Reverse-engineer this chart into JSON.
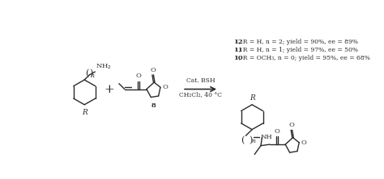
{
  "background_color": "#ffffff",
  "figure_width": 4.74,
  "figure_height": 2.22,
  "dpi": 100,
  "conditions_line1": "Cat. BSH",
  "conditions_line2": "CH₂Cl₂, 40 °C",
  "label_lines": [
    "10, R = OCH₃, n = 0; yield = 95%, ee = 68%",
    "11, R = H, n = 1; yield = 97%, ee = 50%",
    "12, R = H, n = 2; yield = 90%, ee = 89%"
  ],
  "line_color": "#2a2a2a",
  "text_color": "#2a2a2a",
  "font_size": 6.0,
  "small_font": 5.5
}
